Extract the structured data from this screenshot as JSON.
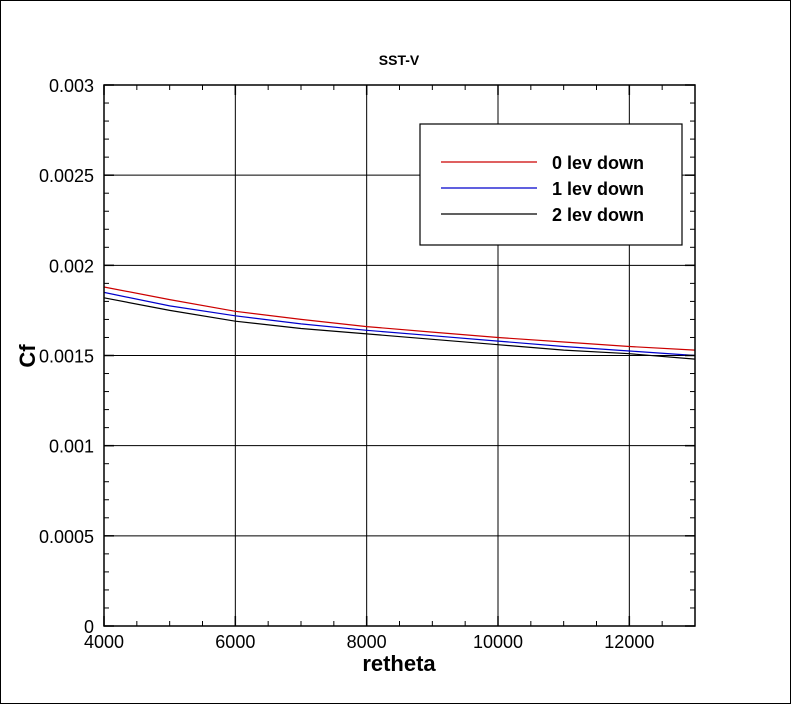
{
  "chart_data": {
    "type": "line",
    "title": "SST-V",
    "xlabel": "retheta",
    "ylabel": "Cf",
    "xlim": [
      4000,
      13000
    ],
    "ylim": [
      0,
      0.003
    ],
    "x_ticks": [
      4000,
      6000,
      8000,
      10000,
      12000
    ],
    "x_tick_labels": [
      "4000",
      "6000",
      "8000",
      "10000",
      "12000"
    ],
    "y_ticks": [
      0,
      0.0005,
      0.001,
      0.0015,
      0.002,
      0.0025,
      0.003
    ],
    "y_tick_labels": [
      "0",
      "0.0005",
      "0.001",
      "0.0015",
      "0.002",
      "0.0025",
      "0.003"
    ],
    "grid": true,
    "legend_position": "top-right",
    "x": [
      4000,
      5000,
      6000,
      7000,
      8000,
      9000,
      10000,
      11000,
      12000,
      13000
    ],
    "series": [
      {
        "name": "0 lev down",
        "color": "#cc0000",
        "values": [
          0.00188,
          0.00181,
          0.001745,
          0.0017,
          0.00166,
          0.00163,
          0.0016,
          0.001575,
          0.00155,
          0.00153
        ]
      },
      {
        "name": "1 lev down",
        "color": "#0000cc",
        "values": [
          0.00185,
          0.001775,
          0.00172,
          0.001675,
          0.00164,
          0.00161,
          0.00158,
          0.00155,
          0.001525,
          0.0015
        ]
      },
      {
        "name": "2 lev down",
        "color": "#000000",
        "values": [
          0.00182,
          0.00175,
          0.00169,
          0.00165,
          0.00162,
          0.00159,
          0.00156,
          0.00153,
          0.00151,
          0.00148
        ]
      }
    ]
  }
}
